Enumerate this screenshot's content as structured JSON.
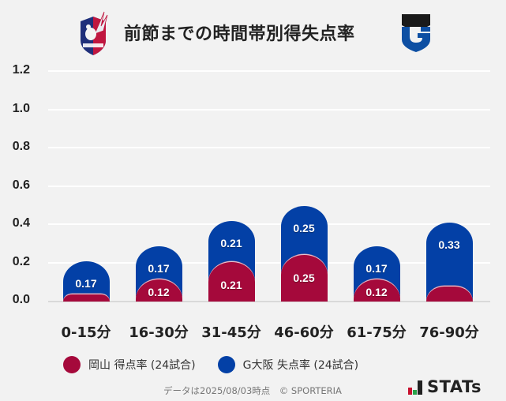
{
  "header": {
    "title": "前節までの時間帯別得失点率",
    "left_logo": "okayama-crest-icon",
    "right_logo": "gamba-osaka-crest-icon"
  },
  "colors": {
    "okayama": "#a5093b",
    "gosaka": "#0340a6",
    "background": "#f2f2f2"
  },
  "chart_data": {
    "type": "bar",
    "stacked": true,
    "title": "前節までの時間帯別得失点率",
    "xlabel": "",
    "ylabel": "",
    "ylim": [
      0,
      1.2
    ],
    "yticks": [
      "1.2",
      "1.0",
      "0.8",
      "0.6",
      "0.4",
      "0.2",
      "0.0"
    ],
    "grid": true,
    "legend_position": "bottom",
    "categories": [
      "0-15分",
      "16-30分",
      "31-45分",
      "46-60分",
      "61-75分",
      "76-90分"
    ],
    "series": [
      {
        "name": "岡山 得点率 (24試合)",
        "color": "#a5093b",
        "values": [
          0,
          0.12,
          0.21,
          0.25,
          0.12,
          0
        ],
        "labels": [
          "",
          "0.12",
          "0.21",
          "0.25",
          "0.12",
          ""
        ]
      },
      {
        "name": "G大阪 失点率 (24試合)",
        "color": "#0340a6",
        "values": [
          0.17,
          0.17,
          0.21,
          0.25,
          0.17,
          0.33
        ],
        "labels": [
          "0.17",
          "0.17",
          "0.21",
          "0.25",
          "0.17",
          "0.33"
        ]
      }
    ]
  },
  "legend": {
    "items": [
      {
        "label": "岡山 得点率 (24試合)",
        "color": "#a5093b"
      },
      {
        "label": "G大阪 失点率 (24試合)",
        "color": "#0340a6"
      }
    ]
  },
  "footer": {
    "note": "データは2025/08/03時点　© SPORTERIA",
    "brand": "STATs"
  }
}
